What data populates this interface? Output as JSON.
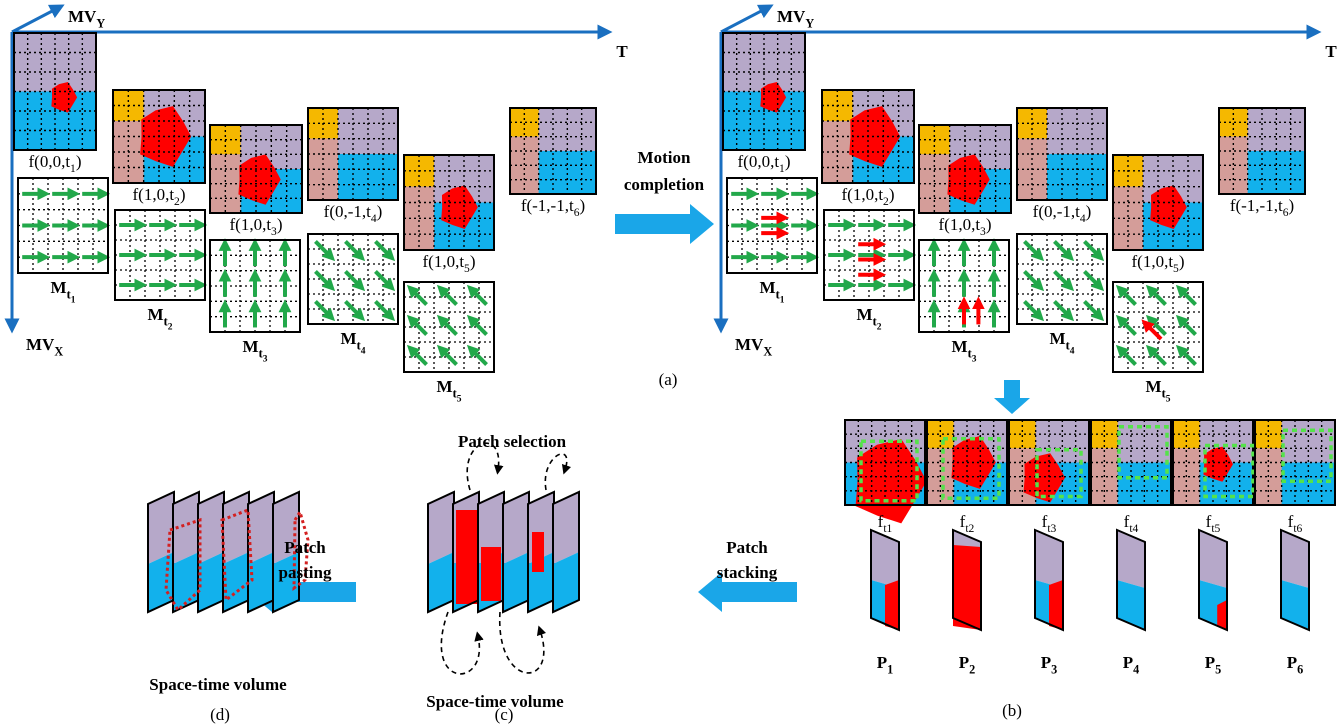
{
  "motion_panels": [
    {
      "axes": {
        "mv_y": {
          "base": "MV",
          "sub": "Y"
        },
        "t": "T",
        "mv_x": {
          "base": "MV",
          "sub": "X"
        }
      },
      "frames": [
        {
          "label": {
            "base": "f(0,0,t",
            "sub": "1",
            "tail": ")"
          },
          "field_label": {
            "base": "M",
            "sub": "t",
            "subsub": "1"
          }
        },
        {
          "label": {
            "base": "f(1,0,t",
            "sub": "2",
            "tail": ")"
          },
          "field_label": {
            "base": "M",
            "sub": "t",
            "subsub": "2"
          }
        },
        {
          "label": {
            "base": "f(1,0,t",
            "sub": "3",
            "tail": ")"
          },
          "field_label": {
            "base": "M",
            "sub": "t",
            "subsub": "3"
          }
        },
        {
          "label": {
            "base": "f(0,-1,t",
            "sub": "4",
            "tail": ")"
          },
          "field_label": {
            "base": "M",
            "sub": "t",
            "subsub": "4"
          }
        },
        {
          "label": {
            "base": "f(1,0,t",
            "sub": "5",
            "tail": ")"
          },
          "field_label": {
            "base": "M",
            "sub": "t",
            "subsub": "5"
          }
        },
        {
          "label": {
            "base": "f(-1,-1,t",
            "sub": "6",
            "tail": ")"
          }
        }
      ]
    },
    {
      "axes": {
        "mv_y": {
          "base": "MV",
          "sub": "Y"
        },
        "t": "T",
        "mv_x": {
          "base": "MV",
          "sub": "X"
        }
      },
      "frames": [
        {
          "label": {
            "base": "f(0,0,t",
            "sub": "1",
            "tail": ")"
          },
          "field_label": {
            "base": "M",
            "sub": "t",
            "subsub": "1"
          }
        },
        {
          "label": {
            "base": "f(1,0,t",
            "sub": "2",
            "tail": ")"
          },
          "field_label": {
            "base": "M",
            "sub": "t",
            "subsub": "2"
          }
        },
        {
          "label": {
            "base": "f(1,0,t",
            "sub": "3",
            "tail": ")"
          },
          "field_label": {
            "base": "M",
            "sub": "t",
            "subsub": "3"
          }
        },
        {
          "label": {
            "base": "f(0,-1,t",
            "sub": "4",
            "tail": ")"
          },
          "field_label": {
            "base": "M",
            "sub": "t",
            "subsub": "4"
          }
        },
        {
          "label": {
            "base": "f(1,0,t",
            "sub": "5",
            "tail": ")"
          },
          "field_label": {
            "base": "M",
            "sub": "t",
            "subsub": "5"
          }
        },
        {
          "label": {
            "base": "f(-1,-1,t",
            "sub": "6",
            "tail": ")"
          }
        }
      ]
    }
  ],
  "motion_completion": [
    "Motion",
    "completion"
  ],
  "caption_a": "(a)",
  "patch_frames": [
    {
      "base": "f",
      "sub": "t1"
    },
    {
      "base": "f",
      "sub": "t2"
    },
    {
      "base": "f",
      "sub": "t3"
    },
    {
      "base": "f",
      "sub": "t4"
    },
    {
      "base": "f",
      "sub": "t5"
    },
    {
      "base": "f",
      "sub": "t6"
    }
  ],
  "patches": [
    {
      "base": "P",
      "sub": "1"
    },
    {
      "base": "P",
      "sub": "2"
    },
    {
      "base": "P",
      "sub": "3"
    },
    {
      "base": "P",
      "sub": "4"
    },
    {
      "base": "P",
      "sub": "5"
    },
    {
      "base": "P",
      "sub": "6"
    }
  ],
  "patch_stacking": [
    "Patch",
    "stacking"
  ],
  "patch_selection": "Patch selection",
  "volume_c_label": "Space-time volume",
  "patch_pasting": [
    "Patch",
    "pasting"
  ],
  "volume_d_label": "Space-time volume",
  "caption_b": "(b)",
  "caption_c": "(c)",
  "caption_d": "(d)"
}
